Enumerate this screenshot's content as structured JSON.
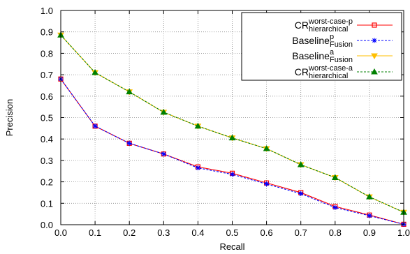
{
  "chart_data": {
    "type": "line",
    "xlabel": "Recall",
    "ylabel": "Precision",
    "xlim": [
      0.0,
      1.0
    ],
    "ylim": [
      0.0,
      1.0
    ],
    "grid": true,
    "legend_position": "top-right",
    "x_ticks": [
      "0.0",
      "0.1",
      "0.2",
      "0.3",
      "0.4",
      "0.5",
      "0.6",
      "0.7",
      "0.8",
      "0.9",
      "1.0"
    ],
    "y_ticks": [
      "0.0",
      "0.1",
      "0.2",
      "0.3",
      "0.4",
      "0.5",
      "0.6",
      "0.7",
      "0.8",
      "0.9",
      "1.0"
    ],
    "x": [
      0.0,
      0.1,
      0.2,
      0.3,
      0.4,
      0.5,
      0.6,
      0.7,
      0.8,
      0.9,
      1.0
    ],
    "series": [
      {
        "name_base": "CR",
        "name_sup": "worst-case-p",
        "name_sub": "hierarchical",
        "color": "#ff0000",
        "marker": "square",
        "dash": "solid",
        "values": [
          0.68,
          0.46,
          0.38,
          0.33,
          0.27,
          0.24,
          0.195,
          0.15,
          0.085,
          0.045,
          0.002
        ]
      },
      {
        "name_base": "Baseline",
        "name_sup": "p",
        "name_sub": "Fusion",
        "color": "#0000ff",
        "marker": "asterisk",
        "dash": "dashed",
        "values": [
          0.68,
          0.46,
          0.38,
          0.33,
          0.265,
          0.235,
          0.19,
          0.145,
          0.08,
          0.042,
          0.002
        ]
      },
      {
        "name_base": "Baseline",
        "name_sup": "a",
        "name_sub": "Fusion",
        "color": "#ffbf00",
        "marker": "triangle-down",
        "dash": "solid",
        "values": [
          0.885,
          0.71,
          0.62,
          0.525,
          0.46,
          0.405,
          0.355,
          0.28,
          0.22,
          0.13,
          0.058
        ]
      },
      {
        "name_base": "CR",
        "name_sup": "worst-case-a",
        "name_sub": "hierarchical",
        "color": "#008000",
        "marker": "triangle-up",
        "dash": "dashed",
        "values": [
          0.885,
          0.71,
          0.62,
          0.525,
          0.46,
          0.405,
          0.355,
          0.28,
          0.22,
          0.13,
          0.058
        ]
      }
    ]
  }
}
